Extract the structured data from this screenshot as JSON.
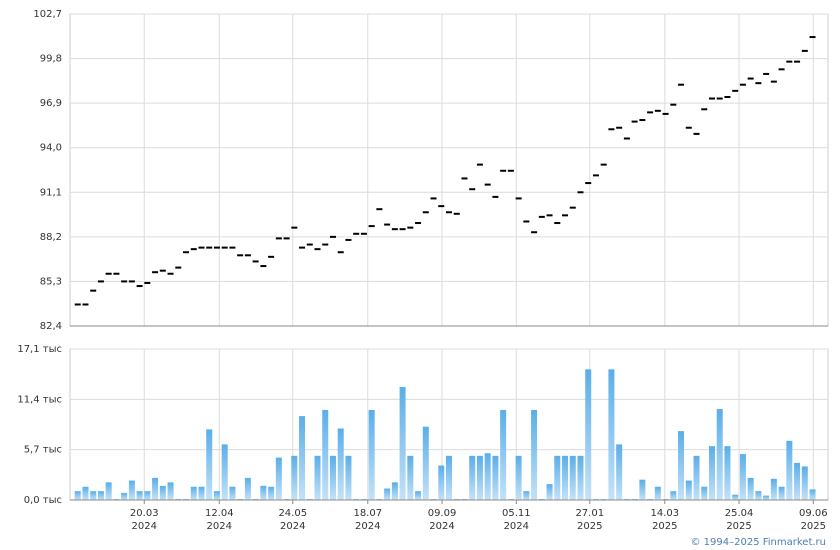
{
  "chart_data": [
    {
      "type": "price",
      "color": "#000000",
      "xlim": [
        -1,
        97
      ],
      "ylim": [
        82.4,
        102.7
      ],
      "yticks": [
        {
          "value": 82.4,
          "label": "82,4"
        },
        {
          "value": 85.3,
          "label": "85,3"
        },
        {
          "value": 88.2,
          "label": "88,2"
        },
        {
          "value": 91.1,
          "label": "91,1"
        },
        {
          "value": 94.0,
          "label": "94,0"
        },
        {
          "value": 96.9,
          "label": "96,9"
        },
        {
          "value": 99.8,
          "label": "99,8"
        },
        {
          "value": 102.7,
          "label": "102,7"
        }
      ],
      "grid": true,
      "values": [
        83.8,
        83.8,
        84.7,
        85.3,
        85.8,
        85.8,
        85.3,
        85.3,
        85.0,
        85.2,
        85.9,
        86.0,
        85.8,
        86.2,
        87.2,
        87.4,
        87.5,
        87.5,
        87.5,
        87.5,
        87.5,
        87.0,
        87.0,
        86.6,
        86.3,
        86.9,
        88.1,
        88.1,
        88.8,
        87.5,
        87.7,
        87.4,
        87.7,
        88.2,
        87.2,
        88.0,
        88.4,
        88.4,
        88.9,
        90.0,
        89.0,
        88.7,
        88.7,
        88.8,
        89.1,
        89.8,
        90.7,
        90.2,
        89.8,
        89.7,
        92.0,
        91.3,
        92.9,
        91.6,
        90.8,
        92.5,
        92.5,
        90.7,
        89.2,
        88.5,
        89.5,
        89.6,
        89.1,
        89.6,
        90.1,
        91.1,
        91.7,
        92.2,
        92.9,
        95.2,
        95.3,
        94.6,
        95.7,
        95.8,
        96.3,
        96.4,
        96.2,
        96.8,
        98.1,
        95.3,
        94.9,
        96.5,
        97.2,
        97.2,
        97.3,
        97.7,
        98.1,
        98.5,
        98.2,
        98.8,
        98.3,
        99.1,
        99.6,
        99.6,
        100.3,
        101.2
      ]
    },
    {
      "type": "volume",
      "color": "#7cc0ee",
      "xlim": [
        -1,
        97
      ],
      "ylim": [
        0,
        17.1
      ],
      "yticks": [
        {
          "value": 0,
          "label": "0,0 тыс"
        },
        {
          "value": 5.7,
          "label": "5,7 тыс"
        },
        {
          "value": 11.4,
          "label": "11,4 тыс"
        },
        {
          "value": 17.1,
          "label": "17,1 тыс"
        }
      ],
      "xticks": [
        {
          "value": 8.6,
          "label": "20.03",
          "year": "2024"
        },
        {
          "value": 18.3,
          "label": "12.04",
          "year": "2024"
        },
        {
          "value": 27.8,
          "label": "24.05",
          "year": "2024"
        },
        {
          "value": 37.5,
          "label": "18.07",
          "year": "2024"
        },
        {
          "value": 47.1,
          "label": "09.09",
          "year": "2024"
        },
        {
          "value": 56.7,
          "label": "05.11",
          "year": "2024"
        },
        {
          "value": 66.2,
          "label": "27.01",
          "year": "2025"
        },
        {
          "value": 75.9,
          "label": "14.03",
          "year": "2025"
        },
        {
          "value": 85.5,
          "label": "25.04",
          "year": "2025"
        },
        {
          "value": 95.1,
          "label": "09.06",
          "year": "2025"
        }
      ],
      "grid": true,
      "values": [
        1.0,
        1.5,
        1.0,
        1.0,
        2.0,
        0.1,
        0.8,
        2.2,
        1.0,
        1.0,
        2.5,
        1.6,
        2.0,
        0.1,
        0.1,
        1.5,
        1.5,
        8.0,
        1.0,
        6.3,
        1.5,
        0.1,
        2.5,
        0.1,
        1.6,
        1.5,
        4.8,
        0.1,
        5.0,
        9.5,
        0.1,
        5.0,
        10.2,
        5.0,
        8.1,
        5.0,
        0.1,
        0.1,
        10.2,
        0.1,
        1.3,
        2.0,
        12.8,
        5.0,
        1.0,
        8.3,
        0.1,
        3.9,
        5.0,
        0.1,
        0.1,
        5.0,
        5.0,
        5.3,
        5.0,
        10.2,
        0.1,
        5.0,
        1.0,
        10.2,
        0.1,
        1.8,
        5.0,
        5.0,
        5.0,
        5.0,
        14.8,
        0.1,
        0.1,
        14.8,
        6.3,
        0.1,
        0.1,
        2.3,
        0.1,
        1.5,
        0.1,
        1.0,
        7.8,
        2.2,
        5.0,
        1.5,
        6.1,
        10.3,
        6.1,
        0.6,
        5.2,
        2.5,
        1.0,
        0.5,
        2.4,
        1.5,
        6.7,
        4.2,
        3.8,
        1.2
      ]
    }
  ],
  "footer": "© 1994–2025 Finmarket.ru"
}
